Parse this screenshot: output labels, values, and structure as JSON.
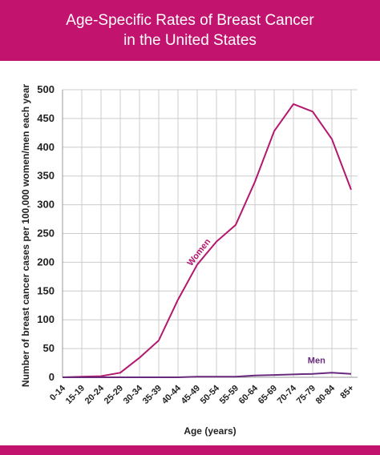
{
  "header": {
    "title_line1": "Age-Specific Rates of Breast Cancer",
    "title_line2": "in the United States"
  },
  "colors": {
    "brand": "#c2136f",
    "women": "#b3176e",
    "men": "#6a2a7c",
    "grid": "#cccccc"
  },
  "chart_data": {
    "type": "line",
    "categories": [
      "0-14",
      "15-19",
      "20-24",
      "25-29",
      "30-34",
      "35-39",
      "40-44",
      "45-49",
      "50-54",
      "55-59",
      "60-64",
      "65-69",
      "70-74",
      "75-79",
      "80-84",
      "85+"
    ],
    "series": [
      {
        "name": "Women",
        "values": [
          0,
          1,
          2,
          8,
          34,
          64,
          135,
          196,
          236,
          265,
          340,
          428,
          475,
          462,
          414,
          326
        ]
      },
      {
        "name": "Men",
        "values": [
          0,
          0,
          0,
          0,
          0,
          0,
          0,
          1,
          1,
          1,
          3,
          4,
          5,
          6,
          8,
          6
        ]
      }
    ],
    "xlabel": "Age (years)",
    "ylabel": "Number of breast cancer cases per 100,000 women/men each year",
    "ylim": [
      0,
      500
    ],
    "yticks": [
      0,
      50,
      100,
      150,
      200,
      250,
      300,
      350,
      400,
      450,
      500
    ],
    "grid": true
  }
}
